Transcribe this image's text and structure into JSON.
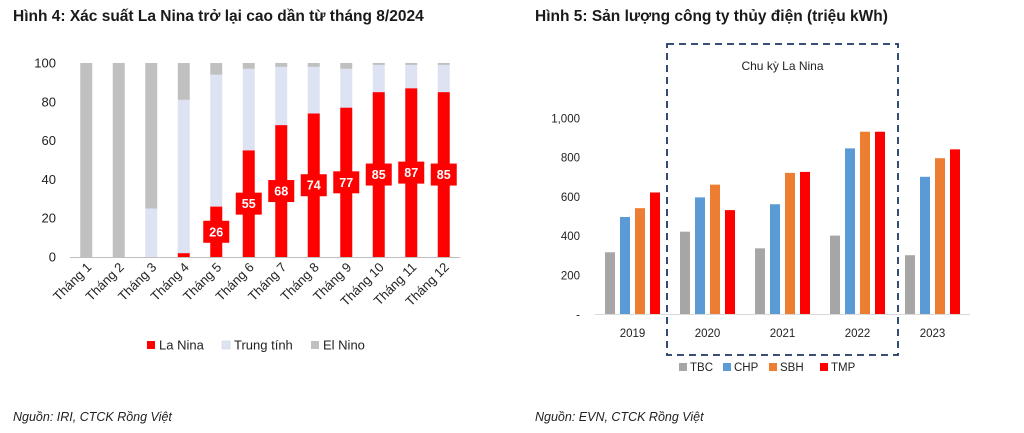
{
  "left": {
    "title": "Hình 4: Xác suất La Nina trở lại cao dần từ tháng 8/2024",
    "source": "Nguồn: IRI, CTCK Rồng Việt"
  },
  "right": {
    "title": "Hình 5: Sản lượng công ty thủy điện (triệu kWh)",
    "source": "Nguồn: EVN, CTCK Rồng Việt"
  },
  "chart_data": [
    {
      "type": "bar",
      "stacked": true,
      "title": "Hình 4: Xác suất La Nina trở lại cao dần từ tháng 8/2024",
      "categories": [
        "Tháng 1",
        "Tháng 2",
        "Tháng 3",
        "Tháng 4",
        "Tháng 5",
        "Tháng 6",
        "Tháng 7",
        "Tháng 8",
        "Tháng 9",
        "Tháng 10",
        "Tháng 11",
        "Tháng 12"
      ],
      "series": [
        {
          "name": "La Nina",
          "color": "#ff0000",
          "values": [
            0,
            0,
            0,
            2,
            26,
            55,
            68,
            74,
            77,
            85,
            87,
            85
          ]
        },
        {
          "name": "Trung tính",
          "color": "#dde3f3",
          "values": [
            0,
            0,
            25,
            79,
            68,
            42,
            30,
            24,
            20,
            14,
            12,
            14
          ]
        },
        {
          "name": "El Nino",
          "color": "#c0c0c0",
          "values": [
            100,
            100,
            75,
            19,
            6,
            3,
            2,
            2,
            3,
            1,
            1,
            1
          ]
        }
      ],
      "data_labels_series": "La Nina",
      "data_labels_from_index": 4,
      "yticks": [
        "0",
        "20",
        "40",
        "60",
        "80",
        "100"
      ],
      "ylim": [
        0,
        100
      ],
      "grid": false,
      "legend_position": "bottom"
    },
    {
      "type": "bar",
      "title": "Hình 5: Sản lượng công ty thủy điện (triệu kWh)",
      "categories": [
        "2019",
        "2020",
        "2021",
        "2022",
        "2023"
      ],
      "series": [
        {
          "name": "TBC",
          "color": "#a6a6a6",
          "values": [
            315,
            420,
            335,
            400,
            300
          ]
        },
        {
          "name": "CHP",
          "color": "#5b9bd5",
          "values": [
            495,
            595,
            560,
            845,
            700
          ]
        },
        {
          "name": "SBH",
          "color": "#ed7d31",
          "values": [
            540,
            660,
            720,
            930,
            795
          ]
        },
        {
          "name": "TMP",
          "color": "#ff0000",
          "values": [
            620,
            530,
            725,
            930,
            840
          ]
        }
      ],
      "yticks": [
        "-",
        "200",
        "400",
        "600",
        "800",
        "1,000"
      ],
      "ylim": [
        0,
        1000
      ],
      "grid": false,
      "legend_position": "bottom",
      "annotation": {
        "text": "Chu kỳ La Nina",
        "spans": [
          "2020",
          "2022"
        ],
        "style": "dashed-box"
      }
    }
  ]
}
